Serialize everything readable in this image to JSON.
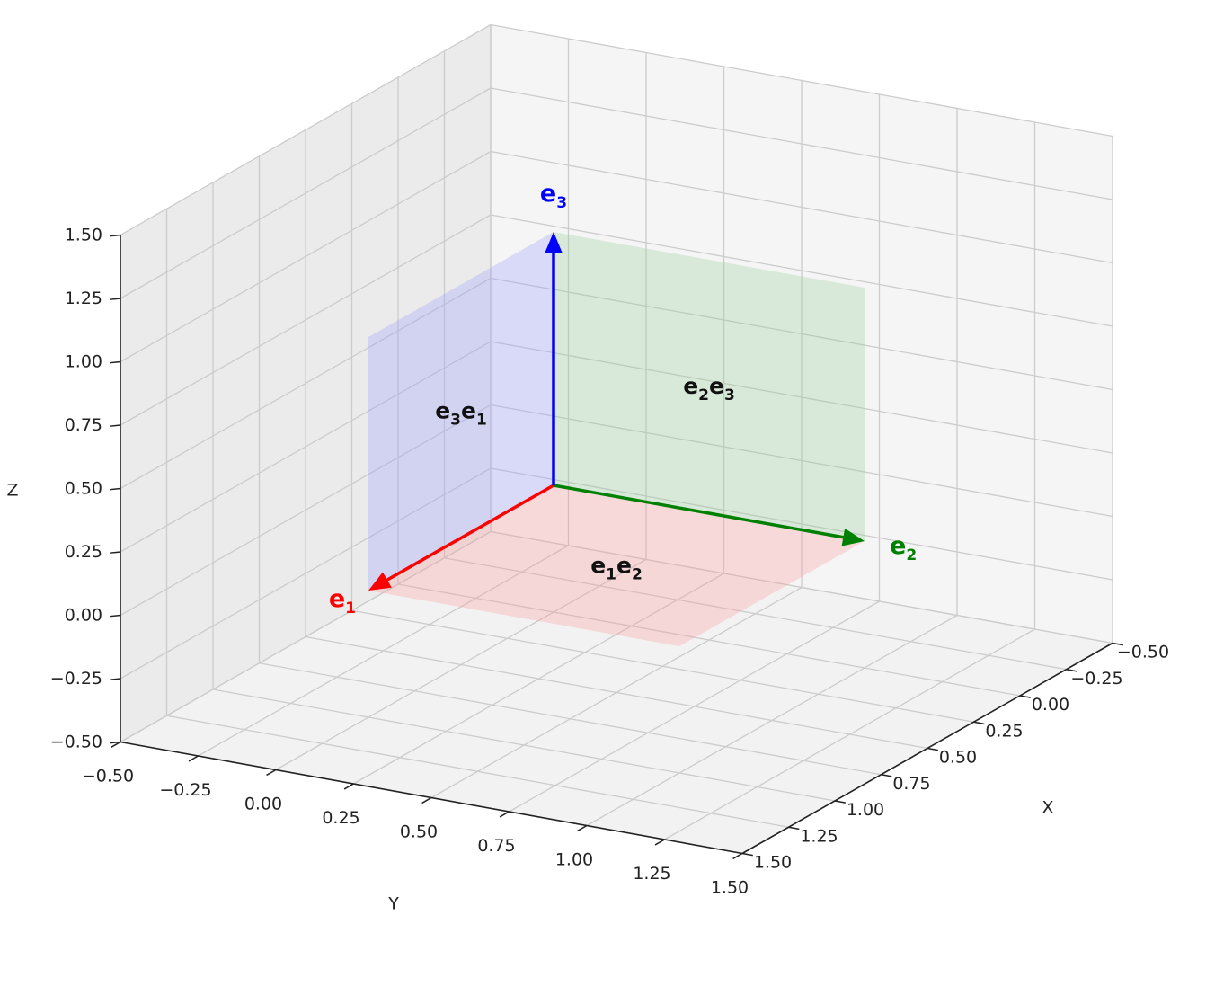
{
  "chart_data": {
    "type": "3d-quiver",
    "axes": {
      "x": {
        "label": "X",
        "lim": [
          -0.5,
          1.5
        ],
        "ticks": [
          "−0.50",
          "−0.25",
          "0.00",
          "0.25",
          "0.50",
          "0.75",
          "1.00",
          "1.25",
          "1.50"
        ]
      },
      "y": {
        "label": "Y",
        "lim": [
          -0.5,
          1.5
        ],
        "ticks": [
          "−0.50",
          "−0.25",
          "0.00",
          "0.25",
          "0.50",
          "0.75",
          "1.00",
          "1.25",
          "1.50"
        ]
      },
      "z": {
        "label": "Z",
        "lim": [
          -0.5,
          1.5
        ],
        "ticks": [
          "−0.50",
          "−0.25",
          "0.00",
          "0.25",
          "0.50",
          "0.75",
          "1.00",
          "1.25",
          "1.50"
        ]
      }
    },
    "grid": true,
    "vectors": [
      {
        "base": "e",
        "sub": "1",
        "from": [
          0,
          0,
          0
        ],
        "to": [
          1,
          0,
          0
        ],
        "color": "#ff0000"
      },
      {
        "base": "e",
        "sub": "2",
        "from": [
          0,
          0,
          0
        ],
        "to": [
          0,
          1,
          0
        ],
        "color": "#008000"
      },
      {
        "base": "e",
        "sub": "3",
        "from": [
          0,
          0,
          0
        ],
        "to": [
          0,
          0,
          1
        ],
        "color": "#0000ff"
      }
    ],
    "planes": [
      {
        "a": "e",
        "a_sub": "1",
        "b": "e",
        "b_sub": "2",
        "span": "xy",
        "color": "#ff9999",
        "label_at": [
          0.5,
          0.5,
          0
        ]
      },
      {
        "a": "e",
        "a_sub": "2",
        "b": "e",
        "b_sub": "3",
        "span": "yz",
        "color": "#99cc99",
        "label_at": [
          0,
          0.5,
          0.5
        ]
      },
      {
        "a": "e",
        "a_sub": "3",
        "b": "e",
        "b_sub": "1",
        "span": "xz",
        "color": "#9999ff",
        "label_at": [
          0.5,
          0,
          0.5
        ]
      }
    ]
  }
}
